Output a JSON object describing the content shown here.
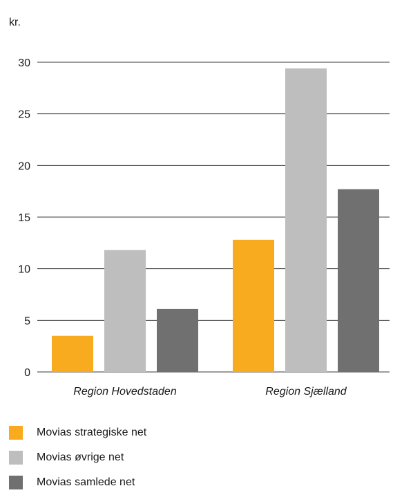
{
  "chart_data": {
    "type": "bar",
    "ylabel": "kr.",
    "ylim": [
      0,
      30
    ],
    "yticks": [
      0,
      5,
      10,
      15,
      20,
      25,
      30
    ],
    "grid": true,
    "categories": [
      "Region Hovedstaden",
      "Region Sjælland"
    ],
    "series": [
      {
        "name": "Movias strategiske net",
        "color": "#f9ab1f",
        "values": [
          3.5,
          12.8
        ]
      },
      {
        "name": "Movias øvrige net",
        "color": "#bebebe",
        "values": [
          11.8,
          29.4
        ]
      },
      {
        "name": "Movias samlede net",
        "color": "#707070",
        "values": [
          6.1,
          17.7
        ]
      }
    ],
    "legend_position": "bottom-left"
  }
}
